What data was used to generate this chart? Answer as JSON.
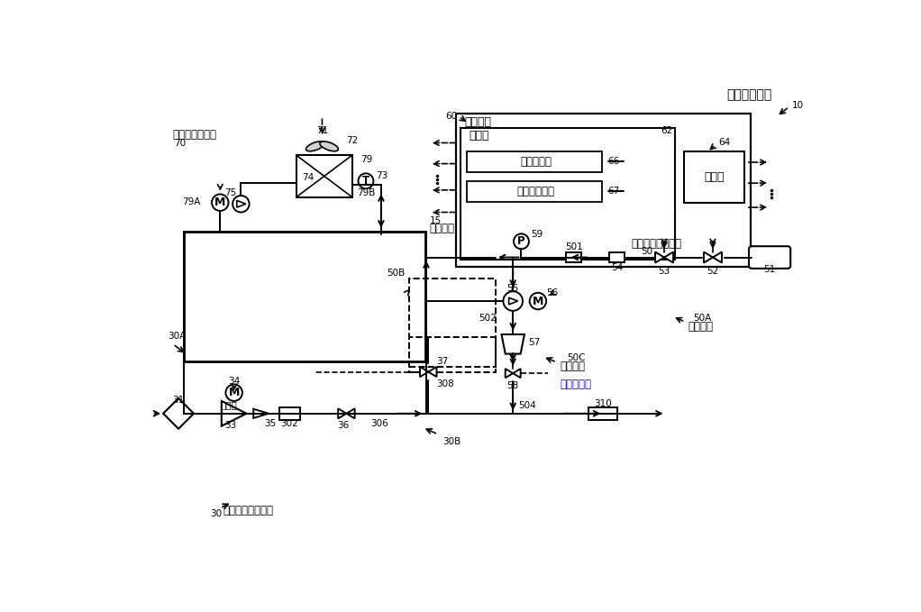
{
  "bg_color": "#ffffff",
  "line_color": "#000000",
  "blue_color": "#0000ff",
  "fig_width": 10.22,
  "fig_height": 6.79,
  "labels": {
    "title": "燃料电池系统",
    "cooling_sys": "冷却剂循环系统",
    "control_device": "控制装置",
    "control_unit": "控制部",
    "flow_acq": "流量取得部",
    "water_acq": "储水量取得部",
    "storage": "存储部",
    "anode_sys": "阳极气体供排系统",
    "cathode_sys": "阴极气体供应系统",
    "compressor": "空压机",
    "circ_sys": "循环系统",
    "exhaust_sys": "排出系统",
    "drain_valve": "排气排水阀",
    "n10": "10",
    "n15": "15",
    "n30": "30",
    "n30A": "30A",
    "n30B": "30B",
    "n31": "31",
    "n33": "33",
    "n34": "34",
    "n35": "35",
    "n36": "36",
    "n37": "37",
    "n50": "50",
    "n50A": "50A",
    "n50B": "50B",
    "n50C": "50C",
    "n51": "51",
    "n52": "52",
    "n53": "53",
    "n54": "54",
    "n55": "55",
    "n56": "56",
    "n57": "57",
    "n58": "58",
    "n59": "59",
    "n60": "60",
    "n62": "62",
    "n64": "64",
    "n66": "66",
    "n67": "67",
    "n70": "70",
    "n71": "71",
    "n72": "72",
    "n73": "73",
    "n74": "74",
    "n75": "75",
    "n79": "79",
    "n79A": "79A",
    "n79B": "79B",
    "n302": "302",
    "n306": "306",
    "n308": "308",
    "n310": "310",
    "n501": "501",
    "n502": "502",
    "n504": "504"
  }
}
